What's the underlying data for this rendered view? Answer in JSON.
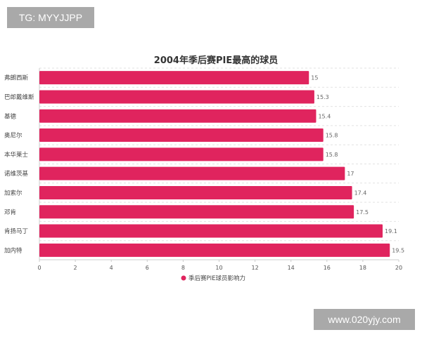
{
  "watermarks": {
    "top": "TG: MYYJJPP",
    "bottom": "www.020yjy.com"
  },
  "chart_data": {
    "type": "bar",
    "orientation": "horizontal",
    "title": "2004年季后赛PIE最高的球员",
    "categories": [
      "弗朗西斯",
      "巴郎戴维斯",
      "基德",
      "奥尼尔",
      "本华莱士",
      "诺维茨基",
      "加索尔",
      "邓肯",
      "肯扬马丁",
      "加内特"
    ],
    "series": [
      {
        "name": "季后赛PIE球员影响力",
        "values": [
          15,
          15.3,
          15.4,
          15.8,
          15.8,
          17,
          17.4,
          17.5,
          19.1,
          19.5
        ],
        "value_labels": [
          "15",
          "15.3",
          "15.4",
          "15.8",
          "15.8",
          "17",
          "17.4",
          "17.5",
          "19.1",
          "19.5"
        ],
        "color": "#e0245e"
      }
    ],
    "xlim": [
      0,
      20
    ],
    "xticks": [
      "0",
      "2",
      "4",
      "6",
      "8",
      "10",
      "12",
      "14",
      "16",
      "18",
      "20"
    ],
    "grid": true,
    "legend_position": "bottom-center"
  }
}
